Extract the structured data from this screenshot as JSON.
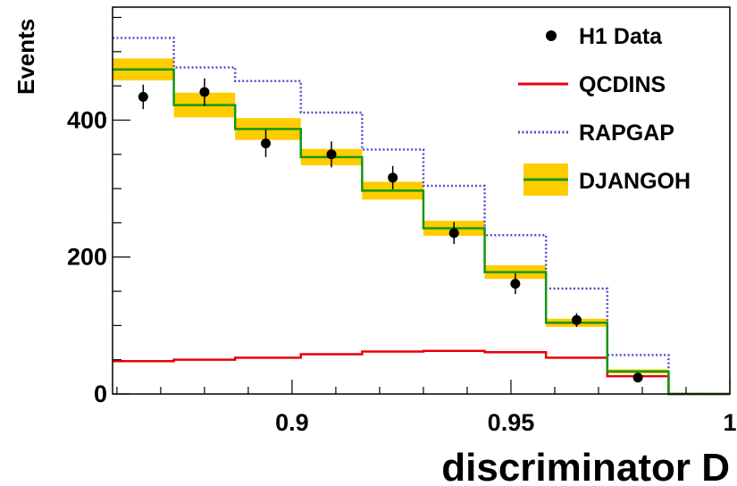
{
  "chart_data": {
    "type": "line",
    "title": "",
    "xlabel": "discriminator D",
    "ylabel": "Events",
    "xlim": [
      0.859,
      1.0
    ],
    "ylim": [
      0,
      565
    ],
    "x_ticks": [
      {
        "value": 0.9,
        "label": "0.9"
      },
      {
        "value": 0.95,
        "label": "0.95"
      },
      {
        "value": 1.0,
        "label": "1"
      }
    ],
    "y_ticks": [
      {
        "value": 0,
        "label": "0"
      },
      {
        "value": 200,
        "label": "200"
      },
      {
        "value": 400,
        "label": "400"
      }
    ],
    "bin_edges": [
      0.859,
      0.873,
      0.887,
      0.902,
      0.916,
      0.93,
      0.944,
      0.958,
      0.972,
      0.986,
      1.0
    ],
    "data_points": {
      "name": "H1 Data",
      "x": [
        0.866,
        0.88,
        0.894,
        0.909,
        0.923,
        0.937,
        0.951,
        0.965,
        0.979
      ],
      "y": [
        434,
        441,
        366,
        350,
        316,
        235,
        161,
        108,
        24
      ],
      "err": [
        18,
        20,
        20,
        19,
        17,
        16,
        15,
        10,
        5
      ]
    },
    "series": [
      {
        "name": "QCDINS",
        "style": "solid",
        "color": "#e8000b",
        "values": [
          48,
          50,
          53,
          58,
          62,
          63,
          61,
          53,
          26,
          0
        ]
      },
      {
        "name": "RAPGAP",
        "style": "dotted",
        "color": "#5050c8",
        "values": [
          520,
          477,
          457,
          411,
          357,
          304,
          232,
          154,
          57,
          0
        ]
      },
      {
        "name": "DJANGOH",
        "style": "solid",
        "color": "#149614",
        "band_color": "#ffcc00",
        "values": [
          474,
          422,
          387,
          346,
          297,
          242,
          178,
          104,
          33,
          0
        ],
        "band_err": [
          16,
          18,
          16,
          12,
          13,
          11,
          10,
          6,
          3,
          0
        ]
      }
    ],
    "legend": {
      "placement": "top-right",
      "entries": [
        {
          "key": "h1",
          "label": "H1 Data"
        },
        {
          "key": "qcdins",
          "label": "QCDINS"
        },
        {
          "key": "rapgap",
          "label": "RAPGAP"
        },
        {
          "key": "djangoh",
          "label": "DJANGOH"
        }
      ]
    },
    "grid": false
  }
}
